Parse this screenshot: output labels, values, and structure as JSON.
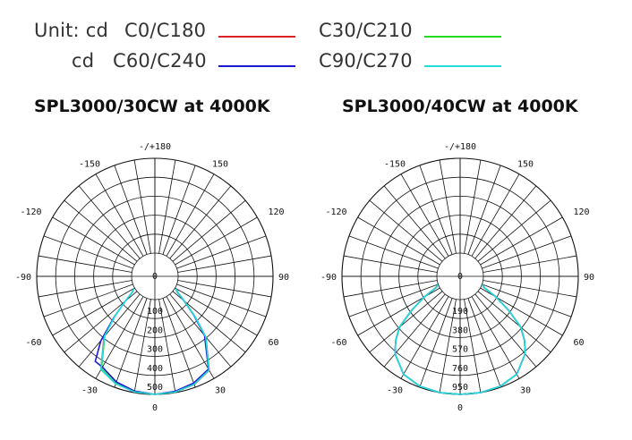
{
  "legend": {
    "unit_label": "Unit: cd",
    "unit_label_2": "cd",
    "items": [
      {
        "label": "C0/C180",
        "color": "#dd2222"
      },
      {
        "label": "C60/C240",
        "color": "#1a1acc"
      },
      {
        "label": "C30/C210",
        "color": "#22dd22"
      },
      {
        "label": "C90/C270",
        "color": "#22dddd"
      }
    ]
  },
  "chart_data": [
    {
      "type": "polar",
      "title": "SPL3000/30CW at 4000K",
      "angle_labels": [
        {
          "angle": 180,
          "text": "-/+180"
        },
        {
          "angle": -150,
          "text": "-150"
        },
        {
          "angle": 150,
          "text": "150"
        },
        {
          "angle": -120,
          "text": "-120"
        },
        {
          "angle": 120,
          "text": "120"
        },
        {
          "angle": -90,
          "text": "-90"
        },
        {
          "angle": 90,
          "text": "90"
        },
        {
          "angle": -60,
          "text": "-60"
        },
        {
          "angle": 60,
          "text": "60"
        },
        {
          "angle": -30,
          "text": "-30"
        },
        {
          "angle": 30,
          "text": "30"
        },
        {
          "angle": 0,
          "text": "0"
        }
      ],
      "radial_labels": [
        "0",
        "100",
        "200",
        "300",
        "400",
        "500"
      ],
      "radial_max": 500,
      "series": [
        {
          "label": "C0/C180",
          "color": "#dd2222",
          "points": [
            [
              -40,
              295
            ],
            [
              -30,
              445
            ],
            [
              -20,
              480
            ],
            [
              -10,
              496
            ],
            [
              0,
              500
            ],
            [
              10,
              497
            ],
            [
              20,
              484
            ],
            [
              30,
              450
            ],
            [
              40,
              296
            ],
            [
              45,
              175
            ],
            [
              50,
              80
            ],
            [
              55,
              25
            ],
            [
              60,
              6
            ]
          ]
        },
        {
          "label": "C30/C210",
          "color": "#22dd22",
          "points": [
            [
              -40,
              288
            ],
            [
              -30,
              440
            ],
            [
              -20,
              478
            ],
            [
              -10,
              495
            ],
            [
              0,
              500
            ],
            [
              10,
              496
            ],
            [
              20,
              482
            ],
            [
              30,
              445
            ],
            [
              40,
              292
            ],
            [
              45,
              172
            ],
            [
              50,
              78
            ],
            [
              55,
              24
            ],
            [
              60,
              5
            ]
          ]
        },
        {
          "label": "C60/C240",
          "color": "#1a1acc",
          "points": [
            [
              -60,
              5
            ],
            [
              -55,
              22
            ],
            [
              -50,
              80
            ],
            [
              -45,
              180
            ],
            [
              -40,
              320
            ],
            [
              -35,
              425
            ],
            [
              -30,
              430
            ],
            [
              -20,
              470
            ],
            [
              -10,
              492
            ],
            [
              0,
              500
            ],
            [
              10,
              493
            ],
            [
              20,
              476
            ],
            [
              30,
              442
            ],
            [
              40,
              285
            ],
            [
              45,
              168
            ],
            [
              50,
              76
            ],
            [
              55,
              22
            ],
            [
              60,
              5
            ]
          ]
        },
        {
          "label": "C90/C270",
          "color": "#22dddd",
          "points": [
            [
              -60,
              5
            ],
            [
              -55,
              24
            ],
            [
              -50,
              80
            ],
            [
              -45,
              175
            ],
            [
              -40,
              292
            ],
            [
              -30,
              445
            ],
            [
              -20,
              480
            ],
            [
              -10,
              496
            ],
            [
              0,
              500
            ],
            [
              10,
              497
            ],
            [
              20,
              483
            ],
            [
              30,
              448
            ],
            [
              40,
              294
            ],
            [
              45,
              174
            ],
            [
              50,
              79
            ],
            [
              55,
              24
            ],
            [
              60,
              6
            ]
          ]
        }
      ]
    },
    {
      "type": "polar",
      "title": "SPL3000/40CW at 4000K",
      "angle_labels": [
        {
          "angle": 180,
          "text": "-/+180"
        },
        {
          "angle": -150,
          "text": "-150"
        },
        {
          "angle": 150,
          "text": "150"
        },
        {
          "angle": -120,
          "text": "-120"
        },
        {
          "angle": 120,
          "text": "120"
        },
        {
          "angle": -90,
          "text": "-90"
        },
        {
          "angle": 90,
          "text": "90"
        },
        {
          "angle": -60,
          "text": "-60"
        },
        {
          "angle": 60,
          "text": "60"
        },
        {
          "angle": -30,
          "text": "-30"
        },
        {
          "angle": 30,
          "text": "30"
        },
        {
          "angle": 0,
          "text": "0"
        }
      ],
      "radial_labels": [
        "0",
        "190",
        "380",
        "570",
        "760",
        "950"
      ],
      "radial_max": 950,
      "series": [
        {
          "label": "C0/C180",
          "color": "#dd2222",
          "points": [
            [
              -70,
              6
            ],
            [
              -65,
              30
            ],
            [
              -60,
              180
            ],
            [
              -55,
              360
            ],
            [
              -50,
              560
            ],
            [
              -45,
              680
            ],
            [
              -40,
              780
            ],
            [
              -30,
              900
            ],
            [
              -20,
              940
            ],
            [
              -10,
              950
            ],
            [
              0,
              950
            ],
            [
              10,
              950
            ],
            [
              20,
              940
            ],
            [
              30,
              900
            ],
            [
              40,
              780
            ],
            [
              45,
              680
            ],
            [
              50,
              560
            ],
            [
              55,
              360
            ],
            [
              60,
              180
            ],
            [
              65,
              30
            ],
            [
              70,
              6
            ]
          ]
        },
        {
          "label": "C30/C210",
          "color": "#22dd22",
          "points": [
            [
              -70,
              6
            ],
            [
              -65,
              30
            ],
            [
              -60,
              180
            ],
            [
              -55,
              360
            ],
            [
              -50,
              560
            ],
            [
              -45,
              680
            ],
            [
              -40,
              780
            ],
            [
              -30,
              900
            ],
            [
              -20,
              940
            ],
            [
              -10,
              950
            ],
            [
              0,
              950
            ],
            [
              10,
              950
            ],
            [
              20,
              940
            ],
            [
              30,
              900
            ],
            [
              40,
              780
            ],
            [
              45,
              680
            ],
            [
              50,
              560
            ],
            [
              55,
              360
            ],
            [
              60,
              180
            ],
            [
              65,
              30
            ],
            [
              70,
              6
            ]
          ]
        },
        {
          "label": "C60/C240",
          "color": "#1a1acc",
          "points": [
            [
              -70,
              6
            ],
            [
              -65,
              30
            ],
            [
              -60,
              180
            ],
            [
              -55,
              360
            ],
            [
              -50,
              560
            ],
            [
              -45,
              680
            ],
            [
              -40,
              780
            ],
            [
              -30,
              900
            ],
            [
              -20,
              940
            ],
            [
              -10,
              950
            ],
            [
              0,
              950
            ],
            [
              10,
              950
            ],
            [
              20,
              940
            ],
            [
              30,
              900
            ],
            [
              40,
              780
            ],
            [
              45,
              680
            ],
            [
              50,
              560
            ],
            [
              55,
              360
            ],
            [
              60,
              180
            ],
            [
              65,
              30
            ],
            [
              70,
              6
            ]
          ]
        },
        {
          "label": "C90/C270",
          "color": "#22dddd",
          "points": [
            [
              -70,
              6
            ],
            [
              -65,
              30
            ],
            [
              -60,
              180
            ],
            [
              -55,
              360
            ],
            [
              -50,
              560
            ],
            [
              -45,
              680
            ],
            [
              -40,
              780
            ],
            [
              -30,
              900
            ],
            [
              -20,
              940
            ],
            [
              -10,
              950
            ],
            [
              0,
              950
            ],
            [
              10,
              950
            ],
            [
              20,
              940
            ],
            [
              30,
              900
            ],
            [
              40,
              780
            ],
            [
              45,
              680
            ],
            [
              50,
              560
            ],
            [
              55,
              360
            ],
            [
              60,
              180
            ],
            [
              65,
              30
            ],
            [
              70,
              6
            ]
          ]
        }
      ]
    }
  ]
}
